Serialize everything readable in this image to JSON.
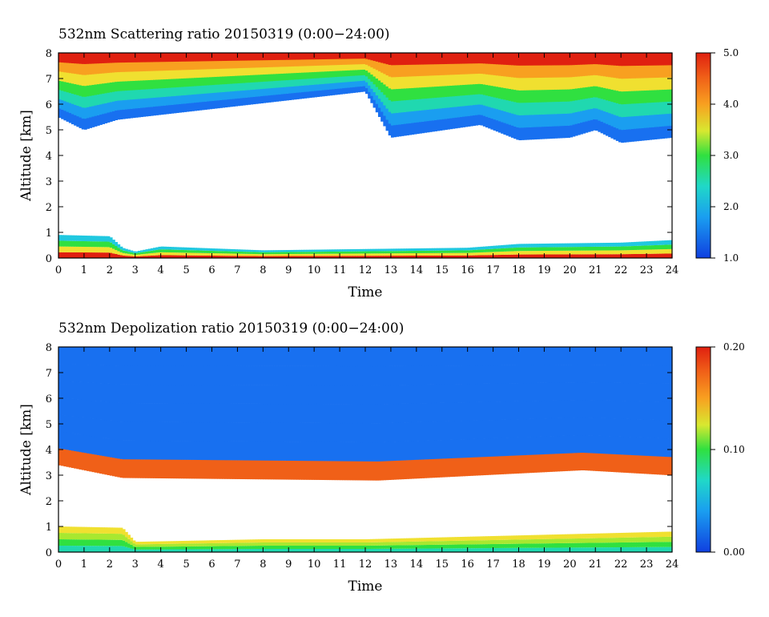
{
  "chart_data": [
    {
      "type": "heatmap",
      "title": "532nm Scattering ratio  20150319 (0:00−24:00)",
      "xlabel": "Time",
      "ylabel": "Altitude [km]",
      "xlim": [
        0,
        24
      ],
      "ylim": [
        0,
        8
      ],
      "x_ticks": [
        "0",
        "1",
        "2",
        "3",
        "4",
        "5",
        "6",
        "7",
        "8",
        "9",
        "10",
        "11",
        "12",
        "13",
        "14",
        "15",
        "16",
        "17",
        "18",
        "19",
        "20",
        "21",
        "22",
        "23",
        "24"
      ],
      "y_ticks": [
        "0",
        "1",
        "2",
        "3",
        "4",
        "5",
        "6",
        "7",
        "8"
      ],
      "colorbar": {
        "min": 1.0,
        "max": 5.0,
        "ticks": [
          "1.0",
          "2.0",
          "3.0",
          "4.0",
          "5.0"
        ]
      },
      "features": {
        "low_layer": [
          {
            "t": 0,
            "top_km": 0.9
          },
          {
            "t": 2,
            "top_km": 0.85
          },
          {
            "t": 2.5,
            "top_km": 0.4
          },
          {
            "t": 3,
            "top_km": 0.25
          },
          {
            "t": 4,
            "top_km": 0.45
          },
          {
            "t": 8,
            "top_km": 0.3
          },
          {
            "t": 12,
            "top_km": 0.35
          },
          {
            "t": 16,
            "top_km": 0.4
          },
          {
            "t": 18,
            "top_km": 0.55
          },
          {
            "t": 22,
            "top_km": 0.6
          },
          {
            "t": 24,
            "top_km": 0.7
          }
        ],
        "upper_cloud_base": [
          {
            "t": 0.0,
            "base_km": 5.5
          },
          {
            "t": 1.0,
            "base_km": 5.0
          },
          {
            "t": 2.3,
            "base_km": 5.4
          },
          {
            "t": 12.0,
            "base_km": 6.5
          },
          {
            "t": 13.0,
            "base_km": 4.7
          },
          {
            "t": 16.5,
            "base_km": 5.2
          },
          {
            "t": 18.0,
            "base_km": 4.6
          },
          {
            "t": 20.0,
            "base_km": 4.7
          },
          {
            "t": 21.0,
            "base_km": 5.0
          },
          {
            "t": 22.0,
            "base_km": 4.5
          },
          {
            "t": 24.0,
            "base_km": 4.7
          }
        ]
      }
    },
    {
      "type": "heatmap",
      "title": "532nm Depolization ratio  20150319 (0:00−24:00)",
      "xlabel": "Time",
      "ylabel": "Altitude [km]",
      "xlim": [
        0,
        24
      ],
      "ylim": [
        0,
        8
      ],
      "x_ticks": [
        "0",
        "1",
        "2",
        "3",
        "4",
        "5",
        "6",
        "7",
        "8",
        "9",
        "10",
        "11",
        "12",
        "13",
        "14",
        "15",
        "16",
        "17",
        "18",
        "19",
        "20",
        "21",
        "22",
        "23",
        "24"
      ],
      "y_ticks": [
        "0",
        "1",
        "2",
        "3",
        "4",
        "5",
        "6",
        "7",
        "8"
      ],
      "colorbar": {
        "min": 0.0,
        "max": 0.2,
        "ticks": [
          "0.00",
          "0.10",
          "0.20"
        ]
      },
      "features": {
        "low_layer": [
          {
            "t": 0,
            "top_km": 1.0
          },
          {
            "t": 2.5,
            "top_km": 0.95
          },
          {
            "t": 3,
            "top_km": 0.4
          },
          {
            "t": 8,
            "top_km": 0.5
          },
          {
            "t": 12,
            "top_km": 0.5
          },
          {
            "t": 16,
            "top_km": 0.6
          },
          {
            "t": 24,
            "top_km": 0.8
          }
        ],
        "upper_cloud_base": [
          {
            "t": 0.0,
            "base_km": 3.4
          },
          {
            "t": 2.5,
            "base_km": 2.9
          },
          {
            "t": 12.5,
            "base_km": 2.8
          },
          {
            "t": 16.5,
            "base_km": 3.0
          },
          {
            "t": 20.5,
            "base_km": 3.2
          },
          {
            "t": 24.0,
            "base_km": 3.0
          }
        ]
      }
    }
  ]
}
